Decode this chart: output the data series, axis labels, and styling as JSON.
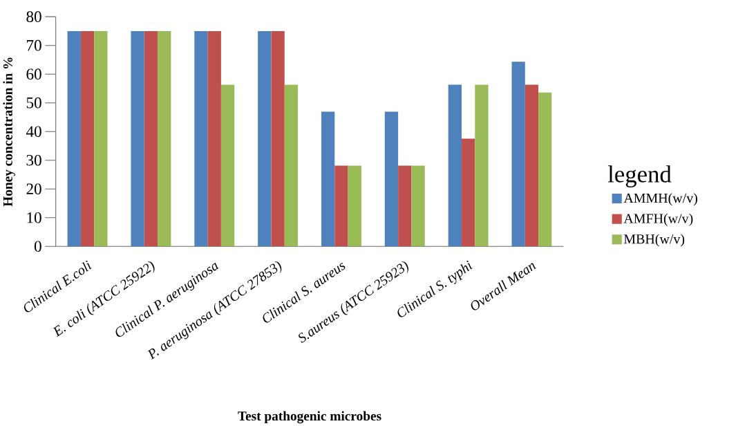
{
  "chart_data": {
    "type": "bar",
    "xlabel": "Test pathogenic microbes",
    "ylabel": "Honey concentration in %",
    "legend_title": "legend",
    "categories": [
      "Clinical E.coli",
      "E. coli (ATCC 25922)",
      "Clinical P. aeruginosa",
      "P. aeruginosa (ATCC 27853)",
      "Clinical S. aureus",
      "S.aureus (ATCC 25923)",
      "Clinical S. typhi",
      "Overall Mean"
    ],
    "series": [
      {
        "name": "AMMH(w/v)",
        "color": "#4f81bd",
        "values": [
          75,
          75,
          75,
          75,
          46.9,
          46.9,
          56.3,
          64.3
        ]
      },
      {
        "name": "AMFH(w/v)",
        "color": "#c0504d",
        "values": [
          75,
          75,
          75,
          75,
          28.1,
          28.1,
          37.5,
          56.3
        ]
      },
      {
        "name": "MBH(w/v)",
        "color": "#9bbb59",
        "values": [
          75,
          75,
          56.3,
          56.3,
          28.1,
          28.1,
          56.3,
          53.6
        ]
      }
    ],
    "ylim": [
      0,
      80
    ],
    "yticks": [
      0,
      10,
      20,
      30,
      40,
      50,
      60,
      70,
      80
    ],
    "grid": false,
    "legend": "right"
  }
}
